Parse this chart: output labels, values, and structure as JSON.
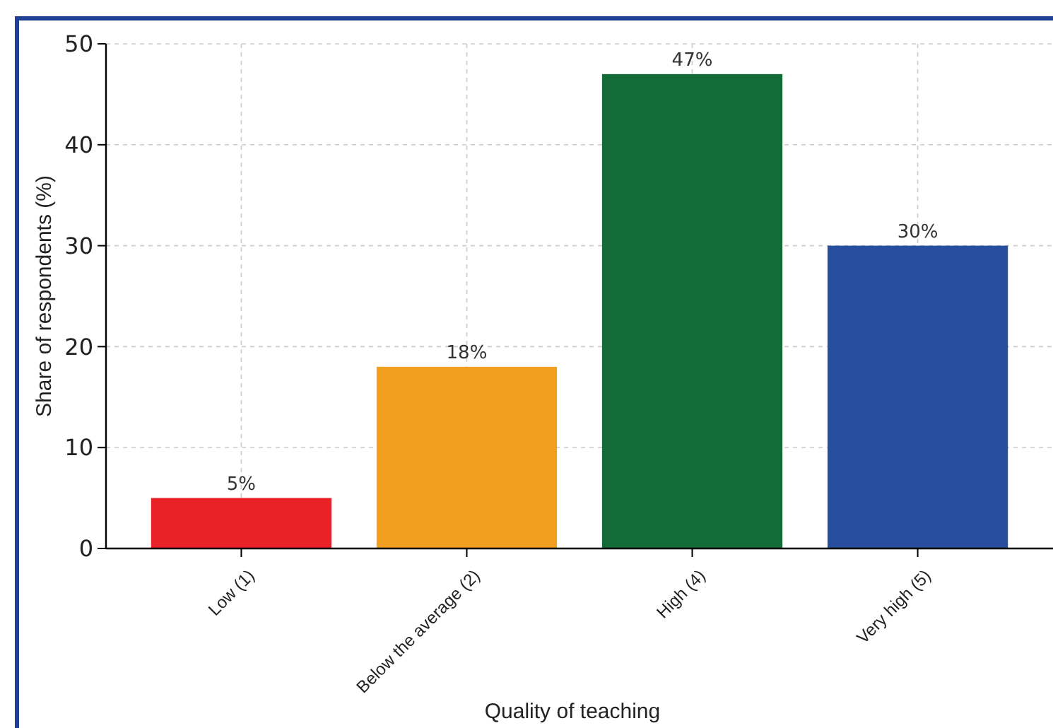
{
  "chart_data": {
    "type": "bar",
    "xlabel": "Quality of teaching",
    "ylabel": "Share of respondents (%)",
    "categories": [
      "Low (1)",
      "Below the average (2)",
      "High (4)",
      "Very high (5)"
    ],
    "values": [
      5,
      18,
      47,
      30
    ],
    "colors": [
      "#e82226",
      "#f29f1f",
      "#136b37",
      "#264d9e"
    ],
    "value_labels": [
      "5%",
      "18%",
      "47%",
      "30%"
    ],
    "ylim": [
      0,
      50
    ],
    "yticks": [
      0,
      10,
      20,
      30,
      40,
      50
    ],
    "grid": true
  }
}
